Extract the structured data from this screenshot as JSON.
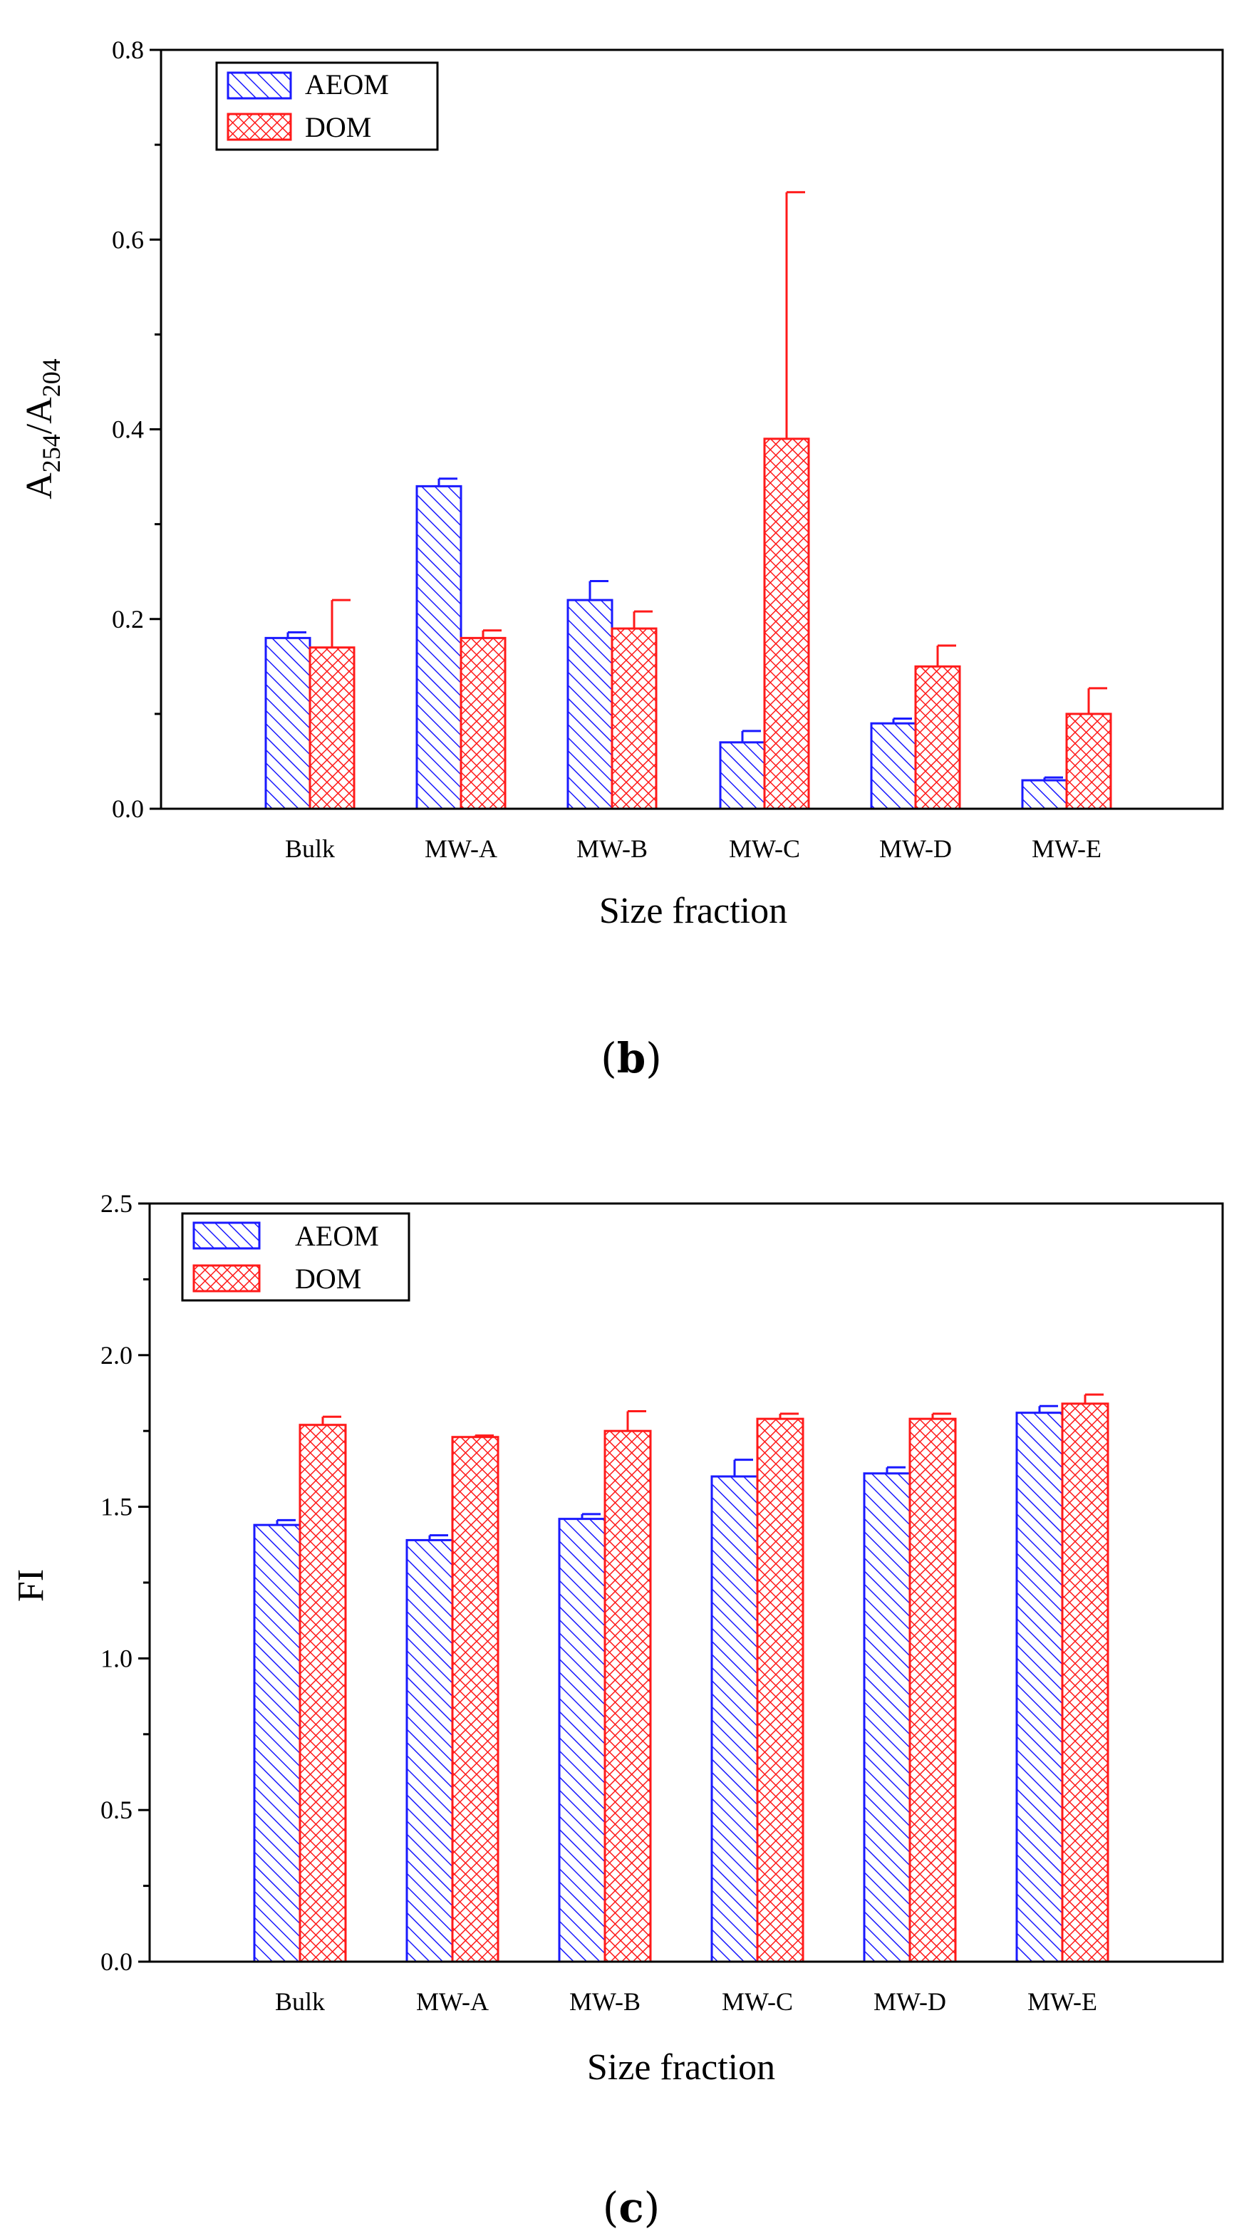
{
  "chart_data": [
    {
      "type": "bar",
      "panel": "b",
      "ylabel": "A254/A204",
      "ylabel_main": "A",
      "ylabel_sub1": "254",
      "ylabel_slash": "/A",
      "ylabel_sub2": "204",
      "xlabel": "Size fraction",
      "ylim": [
        0,
        0.8
      ],
      "yticks": [
        0.0,
        0.2,
        0.4,
        0.6,
        0.8
      ],
      "ytick_labels": [
        "0.0",
        "0.2",
        "0.4",
        "0.6",
        "0.8"
      ],
      "ytick_decimals": 1,
      "categories": [
        "Bulk",
        "MW-A",
        "MW-B",
        "MW-C",
        "MW-D",
        "MW-E"
      ],
      "legend": [
        "AEOM",
        "DOM"
      ],
      "legend_position": "top-left",
      "series": [
        {
          "name": "AEOM",
          "values": [
            0.18,
            0.34,
            0.22,
            0.07,
            0.09,
            0.03
          ],
          "errors": [
            0.006,
            0.008,
            0.02,
            0.012,
            0.005,
            0.003
          ]
        },
        {
          "name": "DOM",
          "values": [
            0.17,
            0.18,
            0.19,
            0.39,
            0.15,
            0.1
          ],
          "errors": [
            0.05,
            0.008,
            0.018,
            0.26,
            0.022,
            0.027
          ]
        }
      ]
    },
    {
      "type": "bar",
      "panel": "c",
      "ylabel": "FI",
      "xlabel": "Size fraction",
      "ylim": [
        0,
        2.5
      ],
      "yticks": [
        0.0,
        0.5,
        1.0,
        1.5,
        2.0,
        2.5
      ],
      "ytick_labels": [
        "0.0",
        "0.5",
        "1.0",
        "1.5",
        "2.0",
        "2.5"
      ],
      "ytick_decimals": 1,
      "categories": [
        "Bulk",
        "MW-A",
        "MW-B",
        "MW-C",
        "MW-D",
        "MW-E"
      ],
      "legend": [
        "AEOM",
        "DOM"
      ],
      "legend_position": "top-left",
      "series": [
        {
          "name": "AEOM",
          "values": [
            1.44,
            1.39,
            1.46,
            1.6,
            1.61,
            1.81
          ],
          "errors": [
            0.016,
            0.016,
            0.016,
            0.055,
            0.02,
            0.022
          ]
        },
        {
          "name": "DOM",
          "values": [
            1.77,
            1.73,
            1.75,
            1.79,
            1.79,
            1.84
          ],
          "errors": [
            0.027,
            0.005,
            0.065,
            0.017,
            0.017,
            0.03
          ]
        }
      ]
    }
  ],
  "panel_labels": {
    "b": "b",
    "c": "c"
  },
  "colors": {
    "aeom": "#1a1aff",
    "dom": "#ff1a1a"
  }
}
